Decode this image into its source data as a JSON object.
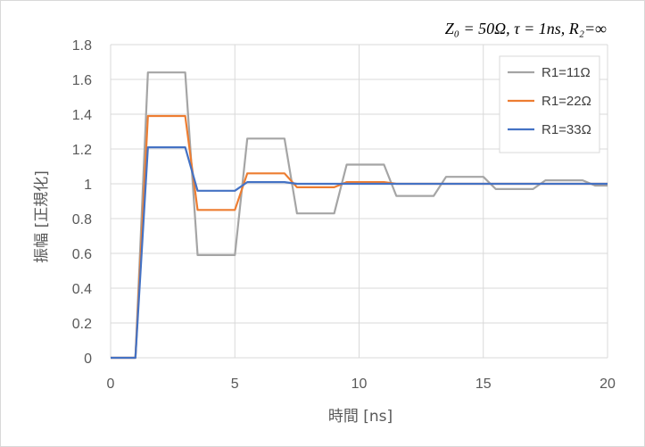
{
  "chart_data": {
    "type": "line",
    "annotation": "Z₀ = 50Ω, τ = 1ns, R₂=∞",
    "xlabel": "時間 [ns]",
    "ylabel": "振幅 [正規化]",
    "xlim": [
      0,
      20
    ],
    "ylim": [
      0,
      1.8
    ],
    "x_ticks": [
      "0",
      "5",
      "10",
      "15",
      "20"
    ],
    "y_ticks": [
      "0",
      "0.2",
      "0.4",
      "0.6",
      "0.8",
      "1",
      "1.2",
      "1.4",
      "1.6",
      "1.8"
    ],
    "grid": true,
    "legend_position": "top-right",
    "series": [
      {
        "name": "R1=11Ω",
        "color": "#a5a5a5",
        "points": [
          [
            0,
            0
          ],
          [
            1,
            0
          ],
          [
            1.5,
            1.64
          ],
          [
            3,
            1.64
          ],
          [
            3.5,
            0.59
          ],
          [
            5,
            0.59
          ],
          [
            5.5,
            1.26
          ],
          [
            7,
            1.26
          ],
          [
            7.5,
            0.83
          ],
          [
            9,
            0.83
          ],
          [
            9.5,
            1.11
          ],
          [
            11,
            1.11
          ],
          [
            11.5,
            0.93
          ],
          [
            13,
            0.93
          ],
          [
            13.5,
            1.04
          ],
          [
            15,
            1.04
          ],
          [
            15.5,
            0.97
          ],
          [
            17,
            0.97
          ],
          [
            17.5,
            1.02
          ],
          [
            19,
            1.02
          ],
          [
            19.5,
            0.99
          ],
          [
            20,
            0.99
          ]
        ]
      },
      {
        "name": "R1=22Ω",
        "color": "#ed7d31",
        "points": [
          [
            0,
            0
          ],
          [
            1,
            0
          ],
          [
            1.5,
            1.39
          ],
          [
            3,
            1.39
          ],
          [
            3.5,
            0.85
          ],
          [
            5,
            0.85
          ],
          [
            5.5,
            1.06
          ],
          [
            7,
            1.06
          ],
          [
            7.5,
            0.98
          ],
          [
            9,
            0.98
          ],
          [
            9.5,
            1.01
          ],
          [
            11,
            1.01
          ],
          [
            11.5,
            1.0
          ],
          [
            20,
            1.0
          ]
        ]
      },
      {
        "name": "R1=33Ω",
        "color": "#4472c4",
        "points": [
          [
            0,
            0
          ],
          [
            1,
            0
          ],
          [
            1.5,
            1.21
          ],
          [
            3,
            1.21
          ],
          [
            3.5,
            0.96
          ],
          [
            5,
            0.96
          ],
          [
            5.5,
            1.01
          ],
          [
            7,
            1.01
          ],
          [
            7.5,
            1.0
          ],
          [
            20,
            1.0
          ]
        ]
      }
    ]
  }
}
